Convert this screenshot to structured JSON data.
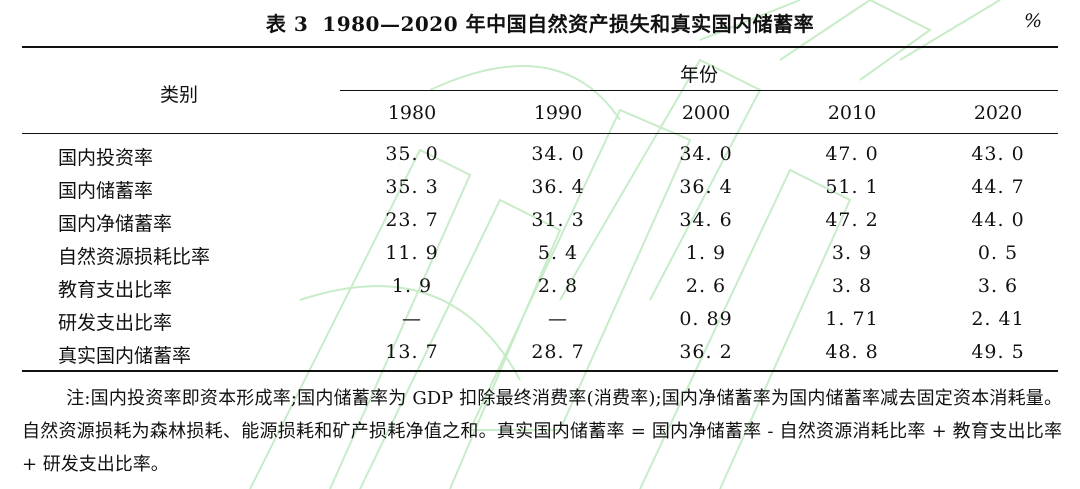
{
  "table": {
    "label": "表 3",
    "title": "1980—2020 年中国自然资产损失和真实国内储蓄率",
    "unit": "%",
    "category_header": "类别",
    "year_header": "年份",
    "years": [
      "1980",
      "1990",
      "2000",
      "2010",
      "2020"
    ],
    "rows": [
      {
        "label": "国内投资率",
        "values": [
          "35. 0",
          "34. 0",
          "34. 0",
          "47. 0",
          "43. 0"
        ]
      },
      {
        "label": "国内储蓄率",
        "values": [
          "35. 3",
          "36. 4",
          "36. 4",
          "51. 1",
          "44. 7"
        ]
      },
      {
        "label": "国内净储蓄率",
        "values": [
          "23. 7",
          "31. 3",
          "34. 6",
          "47. 2",
          "44. 0"
        ]
      },
      {
        "label": "自然资源损耗比率",
        "values": [
          "11. 9",
          "5. 4",
          "1. 9",
          "3. 9",
          "0. 5"
        ]
      },
      {
        "label": "教育支出比率",
        "values": [
          "1. 9",
          "2. 8",
          "2. 6",
          "3. 8",
          "3. 6"
        ]
      },
      {
        "label": "研发支出比率",
        "values": [
          "—",
          "—",
          "0. 89",
          "1. 71",
          "2. 41"
        ]
      },
      {
        "label": "真实国内储蓄率",
        "values": [
          "13. 7",
          "28. 7",
          "36. 2",
          "48. 8",
          "49. 5"
        ]
      }
    ]
  },
  "note": "注:国内投资率即资本形成率;国内储蓄率为 GDP 扣除最终消费率(消费率);国内净储蓄率为国内储蓄率减去固定资本消耗量。自然资源损耗为森林损耗、能源损耗和矿产损耗净值之和。真实国内储蓄率 = 国内净储蓄率 - 自然资源消耗比率 + 教育支出比率 + 研发支出比率。",
  "colors": {
    "text": "#111111",
    "watermark": "#c8ecc8"
  }
}
